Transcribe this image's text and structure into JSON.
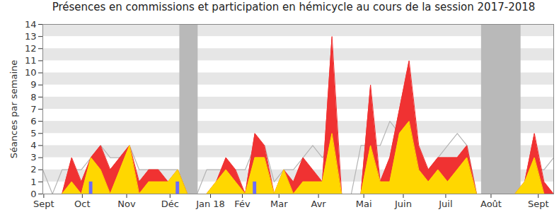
{
  "chart_data": {
    "type": "area",
    "title": "Présences en commissions et participation en hémicycle au cours de la session 2017-2018",
    "ylabel": "Séances par semaine",
    "x": [
      0,
      1,
      2,
      3,
      4,
      5,
      6,
      7,
      8,
      9,
      10,
      11,
      12,
      13,
      14,
      15,
      16,
      17,
      18,
      19,
      20,
      21,
      22,
      23,
      24,
      25,
      26,
      27,
      28,
      29,
      30,
      31,
      32,
      33,
      34,
      35,
      36,
      37,
      38,
      39,
      40,
      41,
      42,
      43,
      44,
      45,
      46,
      47,
      48,
      49,
      50,
      51,
      52,
      53
    ],
    "series": [
      {
        "type": "line",
        "color": "#b4b4b4",
        "values": [
          2,
          0,
          2,
          2,
          2,
          3,
          4,
          3,
          3,
          4,
          2,
          2,
          2,
          2,
          2,
          0,
          0,
          2,
          2,
          2,
          2,
          2,
          4,
          4,
          1,
          2,
          2,
          3,
          4,
          3,
          4,
          0,
          0,
          4,
          4,
          4,
          6,
          5,
          5,
          3,
          2,
          3,
          4,
          5,
          4,
          0,
          0,
          0,
          0,
          0,
          1,
          2,
          2,
          3
        ]
      },
      {
        "type": "area",
        "color": "#f03232",
        "values": [
          0,
          0,
          0,
          3,
          1,
          3,
          4,
          2,
          3,
          4,
          1,
          2,
          2,
          1,
          2,
          0,
          0,
          0,
          1,
          3,
          2,
          0,
          5,
          4,
          0,
          2,
          1,
          3,
          2,
          1,
          13,
          0,
          0,
          0,
          9,
          1,
          3,
          7,
          11,
          4,
          2,
          3,
          3,
          3,
          4,
          0,
          0,
          0,
          0,
          0,
          1,
          5,
          1,
          0
        ]
      },
      {
        "type": "area",
        "color": "#ffd700",
        "values": [
          0,
          0,
          0,
          1,
          0,
          3,
          2,
          0,
          2,
          4,
          0,
          1,
          1,
          1,
          2,
          0,
          0,
          0,
          1,
          2,
          1,
          0,
          3,
          3,
          0,
          2,
          0,
          1,
          1,
          1,
          5,
          0,
          0,
          0,
          4,
          1,
          1,
          5,
          6,
          2,
          1,
          2,
          1,
          2,
          3,
          0,
          0,
          0,
          0,
          0,
          1,
          3,
          0,
          0
        ]
      },
      {
        "type": "bar",
        "color": "#6b6bff",
        "values": [
          0,
          0,
          0,
          0,
          0,
          1,
          0,
          0,
          0,
          0,
          0,
          0,
          0,
          0,
          1,
          0,
          0,
          0,
          0,
          0,
          0,
          0,
          1,
          0,
          0,
          0,
          0,
          0,
          0,
          0,
          0,
          0,
          0,
          0,
          0,
          0,
          0,
          0,
          0,
          0,
          0,
          0,
          0,
          0,
          0,
          0,
          0,
          0,
          0,
          0,
          0,
          0,
          0,
          0
        ]
      }
    ],
    "bands": [
      [
        14.2,
        16.1
      ],
      [
        45.5,
        49.6
      ]
    ],
    "xlim": [
      0,
      53
    ],
    "xticks": [
      {
        "value": 0.1,
        "label": "Sept"
      },
      {
        "value": 4.1,
        "label": "Oct"
      },
      {
        "value": 8.7,
        "label": "Nov"
      },
      {
        "value": 13.2,
        "label": "Déc"
      },
      {
        "value": 17.4,
        "label": "Jan 18"
      },
      {
        "value": 20.7,
        "label": "Fév"
      },
      {
        "value": 24.5,
        "label": "Mar"
      },
      {
        "value": 28.6,
        "label": "Avr"
      },
      {
        "value": 33.3,
        "label": "Mai"
      },
      {
        "value": 37.4,
        "label": "Juin"
      },
      {
        "value": 41.8,
        "label": "Juil"
      },
      {
        "value": 46.5,
        "label": "Août"
      },
      {
        "value": 51.4,
        "label": "Sept"
      }
    ],
    "ylim": [
      0,
      14
    ],
    "yticks": [
      0,
      1,
      2,
      3,
      4,
      5,
      6,
      7,
      8,
      9,
      10,
      11,
      12,
      13,
      14
    ],
    "grid": true
  }
}
